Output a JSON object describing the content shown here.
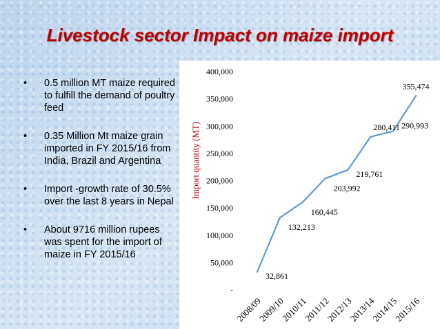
{
  "slide": {
    "title": "Livestock sector Impact on maize import",
    "bullet_symbol": "•",
    "bullets": [
      "0.5 million MT maize required to fulfill the demand of poultry feed",
      "0.35 Million Mt maize grain imported in FY 2015/16 from India, Brazil and Argentina",
      "Import -growth rate of 30.5% over the last 8 years in Nepal",
      "About 9716 million rupees was spent for the import of maize in FY 2015/16"
    ]
  },
  "colors": {
    "title": "#c00000",
    "line": "#5b9bd5",
    "ylabel": "#c00000"
  },
  "chart_data": {
    "type": "line",
    "categories": [
      "2008/09",
      "2009/10",
      "2010/11",
      "2011/12",
      "2012/13",
      "2013/14",
      "2014/15",
      "2015/16"
    ],
    "values": [
      32861,
      132213,
      160445,
      203992,
      219761,
      280411,
      290993,
      355474
    ],
    "data_labels": [
      "32,861",
      "132,213",
      "160,445",
      "203,992",
      "219,761",
      "280,411",
      "290,993",
      "355,474"
    ],
    "ylabel": "Import quantity (MT)",
    "xlabel": "",
    "ylim": [
      0,
      400000
    ],
    "yticks": [
      0,
      50000,
      100000,
      150000,
      200000,
      250000,
      300000,
      350000,
      400000
    ],
    "ytick_labels": [
      "-",
      "50,000",
      "100,000",
      "150,000",
      "200,000",
      "250,000",
      "300,000",
      "350,000",
      "400,000"
    ],
    "grid": false,
    "legend": "none"
  }
}
